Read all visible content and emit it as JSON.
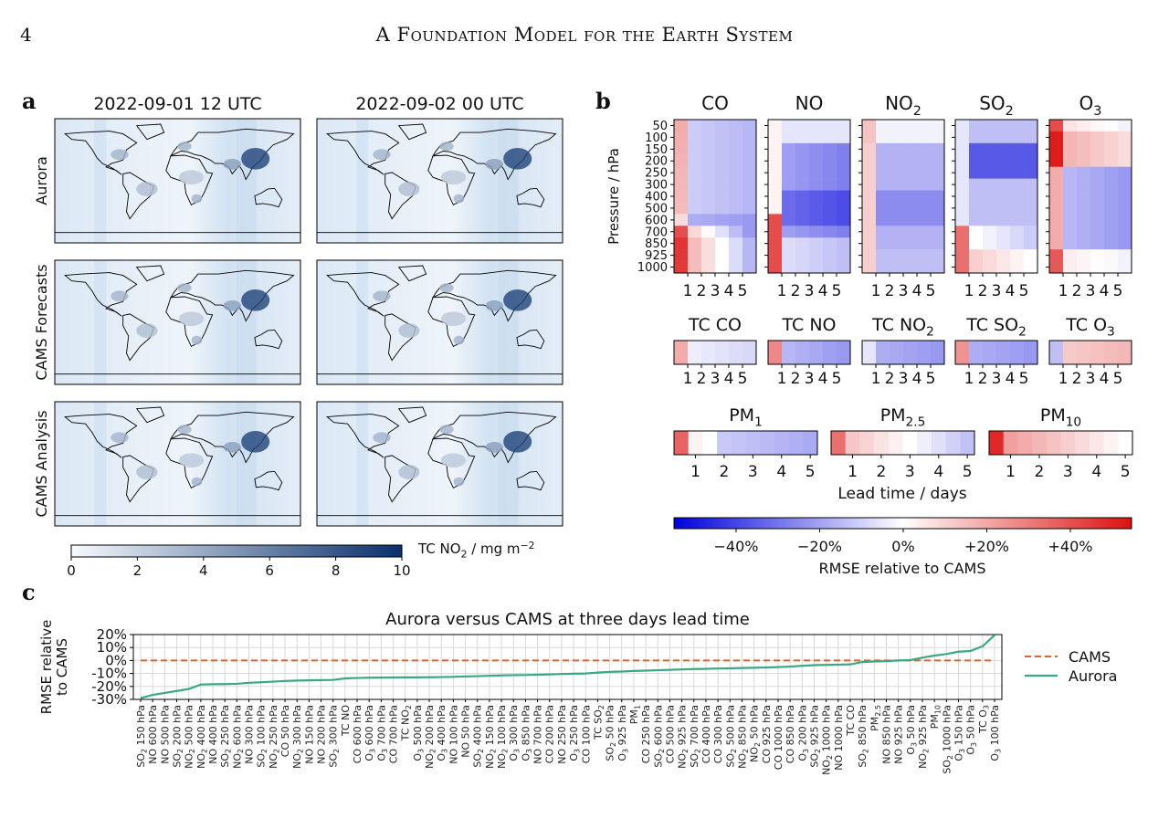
{
  "header": {
    "page_number": "4",
    "running_title": "A Foundation Model for the Earth System"
  },
  "panel_a": {
    "letter": "a",
    "column_titles": [
      "2022-09-01 12 UTC",
      "2022-09-02 00 UTC"
    ],
    "row_labels": [
      "Aurora",
      "CAMS Forecasts",
      "CAMS Analysis"
    ],
    "colorbar": {
      "ticks": [
        "0",
        "2",
        "4",
        "6",
        "8",
        "10"
      ],
      "label_main": "TC NO",
      "label_sub": "2",
      "label_unit": " / mg m",
      "label_sup": "−2",
      "colors": [
        "#ffffff",
        "#08306b"
      ]
    }
  },
  "panel_b": {
    "letter": "b",
    "ylabel": "Pressure / hPa",
    "pressure_levels": [
      "50",
      "100",
      "150",
      "200",
      "250",
      "300",
      "400",
      "500",
      "600",
      "700",
      "850",
      "925",
      "1000"
    ],
    "lead_ticks": [
      "1",
      "2",
      "3",
      "4",
      "5"
    ],
    "xlabel": "Lead time / days",
    "level_panels": [
      {
        "name": "CO",
        "sub": ""
      },
      {
        "name": "NO",
        "sub": ""
      },
      {
        "name": "NO",
        "sub": "2"
      },
      {
        "name": "SO",
        "sub": "2"
      },
      {
        "name": "O",
        "sub": "3"
      }
    ],
    "tc_panels": [
      {
        "name": "TC CO",
        "sub": ""
      },
      {
        "name": "TC NO",
        "sub": ""
      },
      {
        "name": "TC NO",
        "sub": "2"
      },
      {
        "name": "TC SO",
        "sub": "2"
      },
      {
        "name": "TC O",
        "sub": "3"
      }
    ],
    "pm_panels": [
      {
        "name": "PM",
        "sub": "1"
      },
      {
        "name": "PM",
        "sub": "2.5"
      },
      {
        "name": "PM",
        "sub": "10"
      }
    ],
    "colorbar": {
      "ticks": [
        "−40%",
        "−20%",
        "0%",
        "+20%",
        "+40%"
      ],
      "label": "RMSE relative to CAMS",
      "colors": [
        "#0000dd",
        "#ffffff",
        "#dd1111"
      ]
    }
  },
  "panel_c": {
    "letter": "c",
    "legend": [
      "CAMS",
      "Aurora"
    ],
    "colors": {
      "cams": "#d9652b",
      "aurora": "#3aa981"
    }
  },
  "chart_data": [
    {
      "type": "heatmap",
      "title": "",
      "xlabel": "Lead time / days",
      "ylabel": "Pressure / hPa",
      "x": [
        1,
        2,
        3,
        4,
        5
      ],
      "y": [
        50,
        100,
        150,
        200,
        250,
        300,
        400,
        500,
        600,
        700,
        850,
        925,
        1000
      ],
      "color_range": [
        -0.55,
        0.55
      ],
      "panels": [
        "CO",
        "NO",
        "NO2",
        "SO2",
        "O3",
        "TC CO",
        "TC NO",
        "TC NO2",
        "TC SO2",
        "TC O3",
        "PM1",
        "PM2.5",
        "PM10"
      ],
      "value_label": "RMSE relative to CAMS"
    },
    {
      "type": "line",
      "title": "Aurora versus CAMS at three days lead time",
      "xlabel": "",
      "ylabel": "RMSE relative to CAMS",
      "yticks": [
        "-30%",
        "-20%",
        "-10%",
        "0%",
        "10%",
        "20%"
      ],
      "ylim": [
        -30,
        20
      ],
      "categories": [
        [
          "SO",
          "2",
          " 150 hPa"
        ],
        [
          "NO 600 hPa"
        ],
        [
          "NO 500 hPa"
        ],
        [
          "SO",
          "2",
          " 200 hPa"
        ],
        [
          "NO",
          "2",
          " 500 hPa"
        ],
        [
          "NO",
          "2",
          " 400 hPa"
        ],
        [
          "NO 400 hPa"
        ],
        [
          "SO",
          "2",
          " 250 hPa"
        ],
        [
          "NO",
          "2",
          " 600 hPa"
        ],
        [
          "NO 300 hPa"
        ],
        [
          "SO",
          "2",
          " 100 hPa"
        ],
        [
          "NO",
          "2",
          " 250 hPa"
        ],
        [
          "CO 50 hPa"
        ],
        [
          "NO",
          "2",
          " 300 hPa"
        ],
        [
          "NO 150 hPa"
        ],
        [
          "NO 200 hPa"
        ],
        [
          "SO",
          "2",
          " 300 hPa"
        ],
        [
          "TC NO"
        ],
        [
          "CO 600 hPa"
        ],
        [
          "O",
          "3",
          " 600 hPa"
        ],
        [
          "O",
          "3",
          " 700 hPa"
        ],
        [
          "CO 700 hPa"
        ],
        [
          "TC NO",
          "2",
          ""
        ],
        [
          "O",
          "3",
          " 500 hPa"
        ],
        [
          "NO",
          "2",
          " 200 hPa"
        ],
        [
          "O",
          "3",
          " 400 hPa"
        ],
        [
          "NO 100 hPa"
        ],
        [
          "NO 50 hPa"
        ],
        [
          "SO",
          "2",
          " 400 hPa"
        ],
        [
          "NO",
          "2",
          " 150 hPa"
        ],
        [
          "NO",
          "2",
          " 100 hPa"
        ],
        [
          "O",
          "3",
          " 300 hPa"
        ],
        [
          "O",
          "3",
          " 850 hPa"
        ],
        [
          "NO 700 hPa"
        ],
        [
          "CO 200 hPa"
        ],
        [
          "NO 250 hPa"
        ],
        [
          "O",
          "3",
          " 250 hPa"
        ],
        [
          "CO 100 hPa"
        ],
        [
          "TC SO",
          "2",
          ""
        ],
        [
          "SO",
          "2",
          " 50 hPa"
        ],
        [
          "O",
          "3",
          " 925 hPa"
        ],
        [
          "PM",
          "1",
          ""
        ],
        [
          "CO 250 hPa"
        ],
        [
          "SO",
          "2",
          " 600 hPa"
        ],
        [
          "CO 500 hPa"
        ],
        [
          "NO",
          "2",
          " 925 hPa"
        ],
        [
          "SO",
          "2",
          " 700 hPa"
        ],
        [
          "CO 400 hPa"
        ],
        [
          "CO 300 hPa"
        ],
        [
          "SO",
          "2",
          " 500 hPa"
        ],
        [
          "NO",
          "2",
          " 850 hPa"
        ],
        [
          "NO",
          "2",
          " 50 hPa"
        ],
        [
          "CO 925 hPa"
        ],
        [
          "CO 1000 hPa"
        ],
        [
          "CO 850 hPa"
        ],
        [
          "O",
          "3",
          " 200 hPa"
        ],
        [
          "SO",
          "2",
          " 925 hPa"
        ],
        [
          "NO",
          "2",
          " 1000 hPa"
        ],
        [
          "NO 1000 hPa"
        ],
        [
          "TC CO"
        ],
        [
          "SO",
          "2",
          " 850 hPa"
        ],
        [
          "PM",
          "2.5",
          ""
        ],
        [
          "NO 850 hPa"
        ],
        [
          "NO 925 hPa"
        ],
        [
          "O",
          "3",
          " 50 hPa"
        ],
        [
          "NO",
          "2",
          " 925 hPa"
        ],
        [
          "PM",
          "10",
          ""
        ],
        [
          "SO",
          "2",
          " 1000 hPa"
        ],
        [
          "O",
          "3",
          " 150 hPa"
        ],
        [
          "O",
          "3",
          " 50 hPa"
        ],
        [
          "TC O",
          "3",
          ""
        ],
        [
          "O",
          "3",
          " 100 hPa"
        ]
      ],
      "series": [
        {
          "name": "CAMS",
          "values": [
            0,
            0,
            0,
            0,
            0,
            0,
            0,
            0,
            0,
            0,
            0,
            0,
            0,
            0,
            0,
            0,
            0,
            0,
            0,
            0,
            0,
            0,
            0,
            0,
            0,
            0,
            0,
            0,
            0,
            0,
            0,
            0,
            0,
            0,
            0,
            0,
            0,
            0,
            0,
            0,
            0,
            0,
            0,
            0,
            0,
            0,
            0,
            0,
            0,
            0,
            0,
            0,
            0,
            0,
            0,
            0,
            0,
            0,
            0,
            0,
            0,
            0,
            0,
            0,
            0,
            0,
            0,
            0,
            0,
            0,
            0,
            0
          ]
        },
        {
          "name": "Aurora",
          "values": [
            -29,
            -26.5,
            -25,
            -23.5,
            -22,
            -18.5,
            -18.3,
            -18.2,
            -18,
            -17.2,
            -16.8,
            -16.3,
            -15.8,
            -15.5,
            -15.3,
            -15.1,
            -15,
            -13.8,
            -13.5,
            -13.3,
            -13.2,
            -13.1,
            -13,
            -13,
            -12.9,
            -12.8,
            -12.6,
            -12.3,
            -12.1,
            -11.8,
            -11.5,
            -11.3,
            -11.2,
            -11,
            -10.7,
            -10.4,
            -10.2,
            -10,
            -9.3,
            -8.8,
            -8.5,
            -8.1,
            -7.8,
            -7.5,
            -7.2,
            -6.9,
            -6.6,
            -6.4,
            -6.2,
            -6,
            -5.8,
            -5.6,
            -5.4,
            -5.1,
            -4.7,
            -4.1,
            -3.6,
            -3.4,
            -3.2,
            -3,
            -1.2,
            -0.8,
            -0.5,
            0,
            0.3,
            2.2,
            3.8,
            5,
            6.8,
            7.3,
            11,
            19.5
          ]
        }
      ],
      "legend": "right"
    }
  ]
}
